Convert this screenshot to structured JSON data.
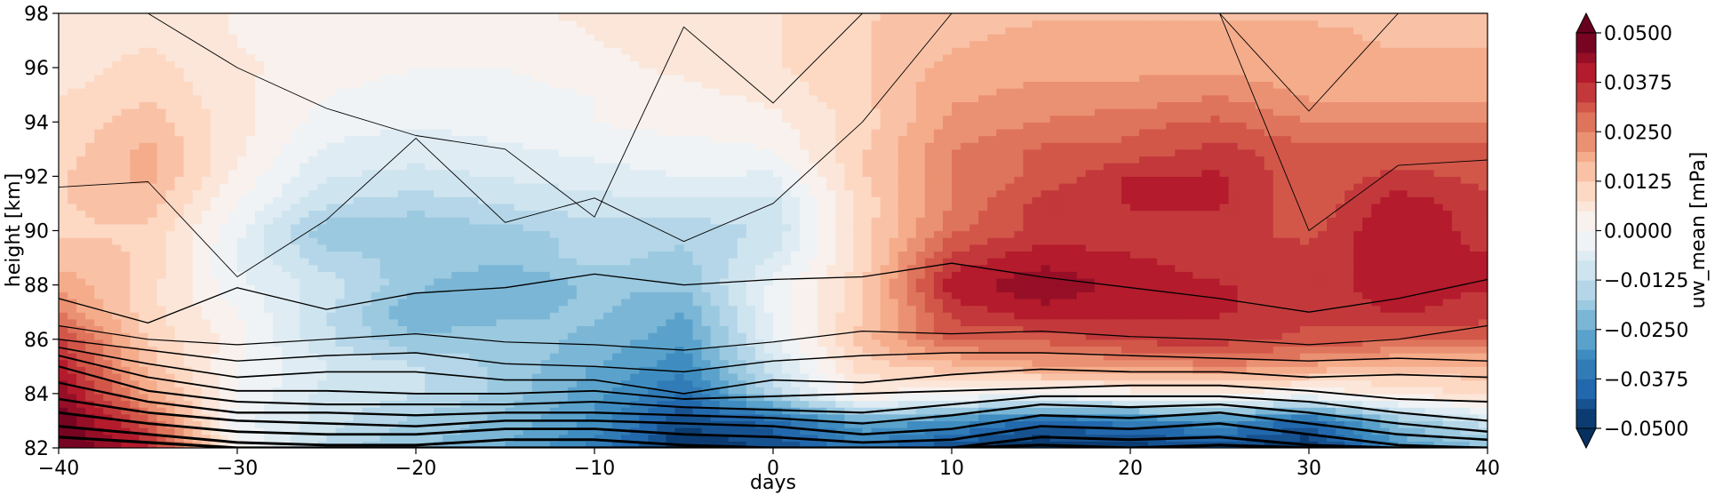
{
  "chart_data": {
    "type": "heatmap",
    "subtype": "filled-contour",
    "xlabel": "days",
    "ylabel": "height [km]",
    "xlim": [
      -40,
      40
    ],
    "ylim": [
      82,
      98
    ],
    "x_ticks": [
      "−40",
      "−30",
      "−20",
      "−10",
      "0",
      "10",
      "20",
      "30",
      "40"
    ],
    "x_tick_values": [
      -40,
      -30,
      -20,
      -10,
      0,
      10,
      20,
      30,
      40
    ],
    "y_ticks": [
      "82",
      "84",
      "86",
      "88",
      "90",
      "92",
      "94",
      "96",
      "98"
    ],
    "y_tick_values": [
      82,
      84,
      86,
      88,
      90,
      92,
      94,
      96,
      98
    ],
    "colormap": "RdBu_r",
    "colorbar": {
      "label": "uw_mean [mPa]",
      "range": [
        -0.05,
        0.05
      ],
      "extend": "both",
      "ticks": [
        "0.0500",
        "0.0375",
        "0.0250",
        "0.0125",
        "0.0000",
        "−0.0125",
        "−0.0250",
        "−0.0375",
        "−0.0500"
      ],
      "tick_values": [
        0.05,
        0.0375,
        0.025,
        0.0125,
        0,
        -0.0125,
        -0.025,
        -0.0375,
        -0.05
      ]
    },
    "field": {
      "x": [
        -40,
        -35,
        -30,
        -25,
        -20,
        -15,
        -10,
        -5,
        0,
        5,
        10,
        15,
        20,
        25,
        30,
        35,
        40
      ],
      "y": [
        82,
        83,
        84,
        85,
        86,
        87,
        88,
        89,
        90,
        91,
        92,
        93,
        94,
        95,
        96,
        97,
        98
      ],
      "values": [
        [
          0.05,
          0.04,
          0.002,
          -0.015,
          -0.02,
          -0.025,
          -0.035,
          -0.05,
          -0.045,
          -0.035,
          -0.045,
          -0.05,
          -0.048,
          -0.045,
          -0.05,
          -0.03,
          -0.02
        ],
        [
          0.05,
          0.03,
          -0.003,
          -0.01,
          -0.018,
          -0.022,
          -0.03,
          -0.045,
          -0.04,
          -0.025,
          -0.03,
          -0.04,
          -0.035,
          -0.03,
          -0.04,
          -0.02,
          -0.01
        ],
        [
          0.045,
          0.02,
          0.0,
          -0.01,
          -0.012,
          -0.018,
          -0.028,
          -0.038,
          -0.015,
          0.005,
          0.0,
          0.0,
          0.002,
          0.003,
          0.0,
          0.005,
          0.01
        ],
        [
          0.04,
          0.015,
          0.0,
          -0.008,
          -0.012,
          -0.018,
          -0.025,
          -0.032,
          -0.01,
          0.01,
          0.015,
          0.02,
          0.02,
          0.025,
          0.02,
          0.015,
          0.015
        ],
        [
          0.035,
          0.012,
          0.002,
          -0.012,
          -0.02,
          -0.018,
          -0.022,
          -0.028,
          -0.005,
          0.015,
          0.03,
          0.03,
          0.035,
          0.035,
          0.032,
          0.03,
          0.03
        ],
        [
          0.025,
          0.01,
          0.0,
          -0.012,
          -0.025,
          -0.022,
          -0.02,
          -0.025,
          -0.003,
          0.012,
          0.035,
          0.04,
          0.038,
          0.038,
          0.035,
          0.038,
          0.035
        ],
        [
          0.02,
          0.01,
          -0.003,
          -0.01,
          -0.02,
          -0.025,
          -0.02,
          -0.02,
          -0.003,
          0.012,
          0.04,
          0.045,
          0.04,
          0.038,
          0.035,
          0.04,
          0.038
        ],
        [
          0.015,
          0.012,
          -0.005,
          -0.015,
          -0.018,
          -0.02,
          -0.015,
          -0.018,
          -0.008,
          0.01,
          0.035,
          0.04,
          0.038,
          0.035,
          0.035,
          0.04,
          0.038
        ],
        [
          0.012,
          0.012,
          -0.003,
          -0.02,
          -0.02,
          -0.018,
          -0.015,
          -0.015,
          -0.012,
          0.01,
          0.028,
          0.035,
          0.035,
          0.035,
          0.032,
          0.042,
          0.035
        ],
        [
          0.012,
          0.015,
          0.0,
          -0.012,
          -0.015,
          -0.012,
          -0.01,
          -0.01,
          -0.01,
          0.01,
          0.025,
          0.035,
          0.038,
          0.038,
          0.03,
          0.04,
          0.035
        ],
        [
          0.012,
          0.018,
          0.003,
          -0.008,
          -0.01,
          -0.008,
          -0.006,
          -0.004,
          -0.005,
          0.012,
          0.025,
          0.03,
          0.038,
          0.038,
          0.03,
          0.035,
          0.032
        ],
        [
          0.01,
          0.018,
          0.005,
          -0.005,
          -0.006,
          -0.005,
          -0.003,
          -0.002,
          0.0,
          0.012,
          0.025,
          0.03,
          0.03,
          0.035,
          0.03,
          0.03,
          0.03
        ],
        [
          0.01,
          0.015,
          0.006,
          -0.002,
          -0.004,
          -0.002,
          0.0,
          0.002,
          0.003,
          0.01,
          0.022,
          0.025,
          0.028,
          0.03,
          0.025,
          0.025,
          0.025
        ],
        [
          0.008,
          0.012,
          0.005,
          0.0,
          -0.002,
          -0.002,
          0.0,
          0.003,
          0.005,
          0.012,
          0.02,
          0.022,
          0.022,
          0.025,
          0.02,
          0.02,
          0.02
        ],
        [
          0.006,
          0.01,
          0.005,
          0.002,
          0.0,
          0.0,
          0.003,
          0.005,
          0.008,
          0.012,
          0.018,
          0.02,
          0.02,
          0.02,
          0.018,
          0.018,
          0.018
        ],
        [
          0.005,
          0.008,
          0.004,
          0.003,
          0.002,
          0.002,
          0.004,
          0.006,
          0.008,
          0.012,
          0.016,
          0.018,
          0.018,
          0.018,
          0.018,
          0.016,
          0.016
        ],
        [
          0.004,
          0.006,
          0.004,
          0.004,
          0.003,
          0.003,
          0.005,
          0.006,
          0.008,
          0.012,
          0.015,
          0.016,
          0.016,
          0.016,
          0.016,
          0.016,
          0.016
        ]
      ]
    },
    "contour_lines": {
      "x": [
        -40,
        -35,
        -30,
        -25,
        -20,
        -15,
        -10,
        -5,
        0,
        5,
        10,
        15,
        20,
        25,
        30,
        35,
        40
      ],
      "lines": [
        [
          82.4,
          82.2,
          82.0,
          82.0,
          82.0,
          82.0,
          82.0,
          82.0,
          82.0,
          82.0,
          82.0,
          82.1,
          82.0,
          82.1,
          82.0,
          82.0,
          82.0
        ],
        [
          82.8,
          82.5,
          82.2,
          82.1,
          82.1,
          82.3,
          82.3,
          82.1,
          82.0,
          82.0,
          82.0,
          82.4,
          82.3,
          82.4,
          82.1,
          82.0,
          82.0
        ],
        [
          83.3,
          82.9,
          82.6,
          82.5,
          82.5,
          82.7,
          82.7,
          82.5,
          82.4,
          82.2,
          82.3,
          82.8,
          82.7,
          82.9,
          82.5,
          82.1,
          82.0
        ],
        [
          83.8,
          83.3,
          83.0,
          82.9,
          82.8,
          83.0,
          83.0,
          82.9,
          82.8,
          82.5,
          82.7,
          83.2,
          83.1,
          83.3,
          82.9,
          82.5,
          82.3
        ],
        [
          84.4,
          83.7,
          83.3,
          83.3,
          83.2,
          83.3,
          83.3,
          83.2,
          83.1,
          82.9,
          83.2,
          83.6,
          83.5,
          83.6,
          83.3,
          82.9,
          82.6
        ],
        [
          85.0,
          84.1,
          83.7,
          83.6,
          83.6,
          83.6,
          83.7,
          83.5,
          83.4,
          83.3,
          83.6,
          83.9,
          83.9,
          83.9,
          83.7,
          83.3,
          83.0
        ],
        [
          85.4,
          84.6,
          84.1,
          84.1,
          84.0,
          84.0,
          84.1,
          83.8,
          83.9,
          84.0,
          84.1,
          84.2,
          84.3,
          84.3,
          84.1,
          83.8,
          83.7
        ],
        [
          85.7,
          85.1,
          84.6,
          84.8,
          84.8,
          84.5,
          84.5,
          84.0,
          84.5,
          84.4,
          84.7,
          84.9,
          84.8,
          84.8,
          84.6,
          84.7,
          84.6
        ],
        [
          86.0,
          85.6,
          85.2,
          85.4,
          85.5,
          85.1,
          85.0,
          84.8,
          85.2,
          85.4,
          85.5,
          85.5,
          85.4,
          85.3,
          85.2,
          85.3,
          85.2
        ],
        [
          86.5,
          86.0,
          85.8,
          86.0,
          86.2,
          85.9,
          85.8,
          85.6,
          85.9,
          86.3,
          86.2,
          86.3,
          86.1,
          86.0,
          85.8,
          86.0,
          86.5
        ],
        [
          87.5,
          86.6,
          87.9,
          87.1,
          87.7,
          87.9,
          88.4,
          88.0,
          88.2,
          88.3,
          88.8,
          88.3,
          87.9,
          87.5,
          87.0,
          87.5,
          88.2
        ],
        [
          91.6,
          91.8,
          88.3,
          90.4,
          93.4,
          90.3,
          91.2,
          89.6,
          91.0,
          94.0,
          98.0,
          98.0,
          98.0,
          98.0,
          90.0,
          92.4,
          92.6
        ],
        [
          98.0,
          98.0,
          96.0,
          94.5,
          93.5,
          93.0,
          90.5,
          97.5,
          94.7,
          98.0,
          98.0,
          98.0,
          98.0,
          98.0,
          94.4,
          98.0,
          98.0
        ]
      ]
    }
  }
}
